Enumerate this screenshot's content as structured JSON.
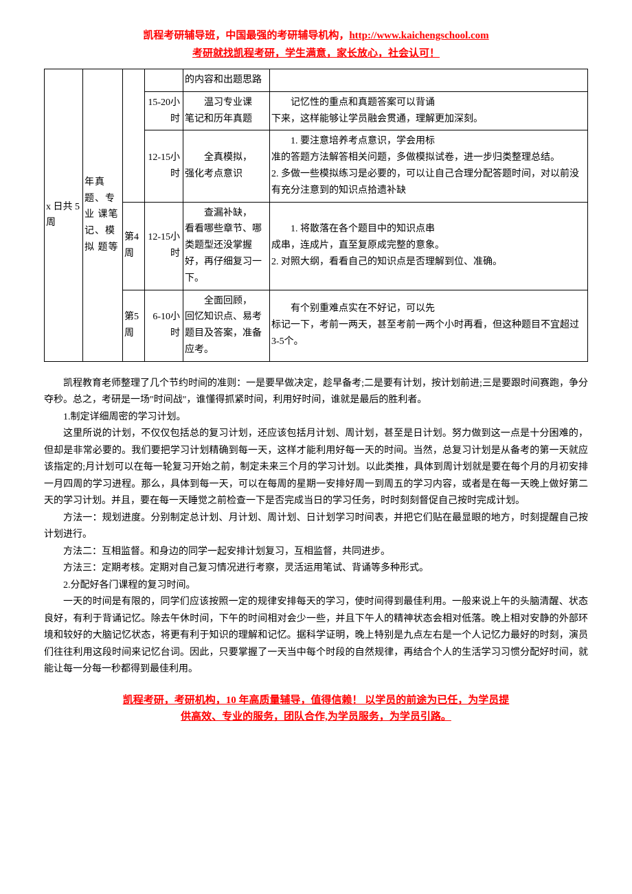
{
  "header": {
    "line1_prefix": "凯程考研辅导班，中国最强的考研辅导机构，",
    "line1_url": "http://www.kaichengschool.com",
    "line2": "考研就找凯程考研，学生满意，家长放心，社会认可！"
  },
  "table": {
    "period": "x 日共 5 周",
    "materials": "年真题、专 业 课笔 记、模 拟 题等",
    "rows": [
      {
        "week": "",
        "hours": "",
        "task": "的内容和出题思路",
        "goal": ""
      },
      {
        "week": "",
        "hours": "15-20小时",
        "task_indent": "温习专业课",
        "task_rest": "笔记和历年真题",
        "goal_indent": "记忆性的重点和真题答案可以背诵",
        "goal_rest": "下来，这样能够让学员融会贯通，理解更加深刻。"
      },
      {
        "week": "",
        "hours": "12-15小时",
        "task_indent": "全真模拟，",
        "task_rest": "强化考点意识",
        "goal_indent": "1. 要注意培养考点意识，学会用标",
        "goal_rest": "准的答题方法解答相关问题，多做模拟试卷，进一步归类整理总结。\n2. 多做一些模拟练习是必要的，可以让自己合理分配答题时间，对以前没有充分注意到的知识点拾遗补缺"
      },
      {
        "week": "第4 周",
        "hours": "12-15小时",
        "task_indent": "查漏补缺，",
        "task_rest": "看看哪些章节、哪类题型还没掌握好，再仔细复习一下。",
        "goal_indent": "1. 将散落在各个题目中的知识点串",
        "goal_rest": "成串，连成片，直至复原成完整的意象。\n2. 对照大纲，看看自己的知识点是否理解到位、准确。"
      },
      {
        "week": "第5 周",
        "hours": "6-10小时",
        "task_indent": "全面回顾，",
        "task_rest": "回忆知识点、易考题目及答案，准备应考。",
        "goal_indent": "有个别重难点实在不好记，可以先",
        "goal_rest": "标记一下，考前一两天，甚至考前一两个小时再看，但这种题目不宜超过 3-5个。"
      }
    ]
  },
  "body": {
    "p1": "凯程教育老师整理了几个节约时间的准则：一是要早做决定，趁早备考;二是要有计划，按计划前进;三是要跟时间赛跑，争分夺秒。总之，考研是一场\"时间战\"，谁懂得抓紧时间，利用好时间，谁就是最后的胜利者。",
    "p2": "1.制定详细周密的学习计划。",
    "p3": "这里所说的计划，不仅仅包括总的复习计划，还应该包括月计划、周计划，甚至是日计划。努力做到这一点是十分困难的，但却是非常必要的。我们要把学习计划精确到每一天，这样才能利用好每一天的时间。当然，总复习计划是从备考的第一天就应该指定的;月计划可以在每一轮复习开始之前，制定未来三个月的学习计划。以此类推，具体到周计划就是要在每个月的月初安排一月四周的学习进程。那么，具体到每一天，可以在每周的星期一安排好周一到周五的学习内容，或者是在每一天晚上做好第二天的学习计划。并且，要在每一天睡觉之前检查一下是否完成当日的学习任务，时时刻刻督促自己按时完成计划。",
    "p4": "方法一：规划进度。分别制定总计划、月计划、周计划、日计划学习时间表，并把它们贴在最显眼的地方，时刻提醒自己按计划进行。",
    "p5": "方法二：互相监督。和身边的同学一起安排计划复习，互相监督，共同进步。",
    "p6": "方法三：定期考核。定期对自己复习情况进行考察，灵活运用笔试、背诵等多种形式。",
    "p7": "2.分配好各门课程的复习时间。",
    "p8": "一天的时间是有限的，同学们应该按照一定的规律安排每天的学习，使时间得到最佳利用。一般来说上午的头脑清醒、状态良好，有利于背诵记忆。除去午休时间，下午的时间相对会少一些，并且下午人的精神状态会相对低落。晚上相对安静的外部环境和较好的大脑记忆状态，将更有利于知识的理解和记忆。据科学证明，晚上特别是九点左右是一个人记忆力最好的时刻，演员们往往利用这段时间来记忆台词。因此，只要掌握了一天当中每个时段的自然规律，再结合个人的生活学习习惯分配好时间，就能让每一分每一秒都得到最佳利用。"
  },
  "footer": {
    "line1": "凯程考研，考研机构，10 年高质量辅导，值得信赖！ 以学员的前途为已任，为学员提",
    "line2": "供高效、专业的服务，团队合作,为学员服务，为学员引路。"
  }
}
